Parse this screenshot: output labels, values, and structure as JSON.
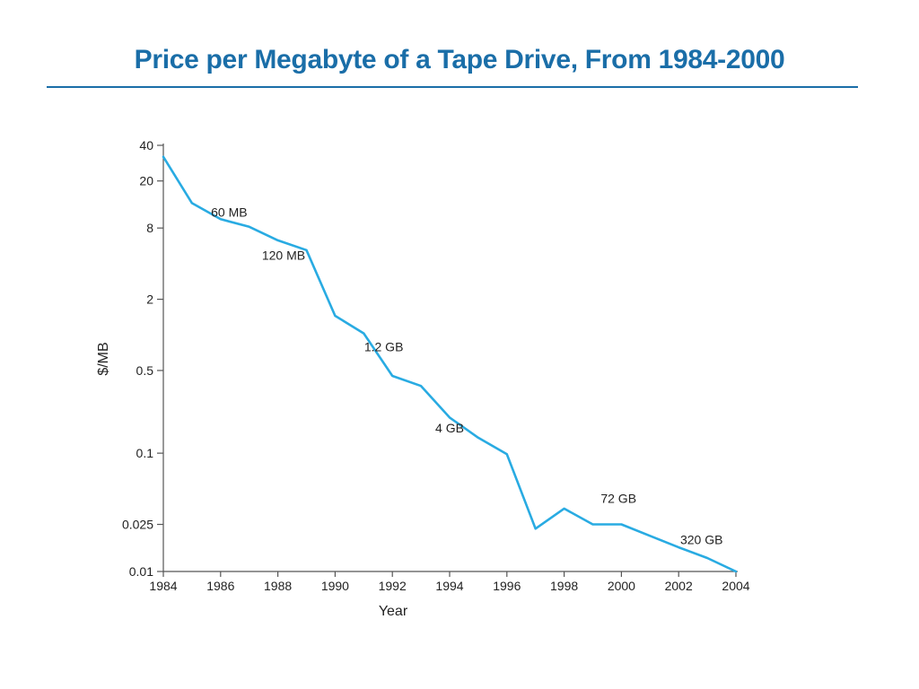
{
  "slide": {
    "title": "Price per Megabyte of a Tape Drive, From 1984-2000",
    "accent_color": "#1a6ea8"
  },
  "chart_data": {
    "type": "line",
    "title": "",
    "xlabel": "Year",
    "ylabel": "$/MB",
    "y_scale": "log",
    "xlim": [
      1984,
      2004
    ],
    "ylim": [
      0.01,
      40
    ],
    "x_ticks": [
      1984,
      1986,
      1988,
      1990,
      1992,
      1994,
      1996,
      1998,
      2000,
      2002,
      2004
    ],
    "y_ticks": [
      40,
      20,
      8,
      2,
      0.5,
      0.1,
      0.025,
      0.01
    ],
    "y_tick_labels": [
      "40",
      "20",
      "8",
      "2",
      "0.5",
      "0.1",
      "0.025",
      "0.01"
    ],
    "grid": false,
    "line_color": "#29abe2",
    "series": [
      {
        "x": [
          1984,
          1985,
          1986,
          1987,
          1988,
          1989,
          1990,
          1991,
          1992,
          1993,
          1994,
          1995,
          1996,
          1997,
          1998,
          1999,
          2000,
          2001,
          2002,
          2003,
          2004
        ],
        "values": [
          32,
          13,
          9.5,
          8.2,
          6.3,
          5.2,
          1.45,
          1.03,
          0.45,
          0.37,
          0.2,
          0.135,
          0.098,
          0.023,
          0.034,
          0.025,
          0.025,
          0.02,
          0.016,
          0.013,
          0.01
        ]
      }
    ],
    "annotations": [
      {
        "text": "60 MB",
        "x": 1986.3,
        "y": 10
      },
      {
        "text": "120 MB",
        "x": 1988.2,
        "y": 4.3
      },
      {
        "text": "1.2 GB",
        "x": 1991.7,
        "y": 0.73
      },
      {
        "text": "4 GB",
        "x": 1994.0,
        "y": 0.15
      },
      {
        "text": "72 GB",
        "x": 1999.9,
        "y": 0.038
      },
      {
        "text": "320 GB",
        "x": 2002.8,
        "y": 0.017
      }
    ]
  }
}
